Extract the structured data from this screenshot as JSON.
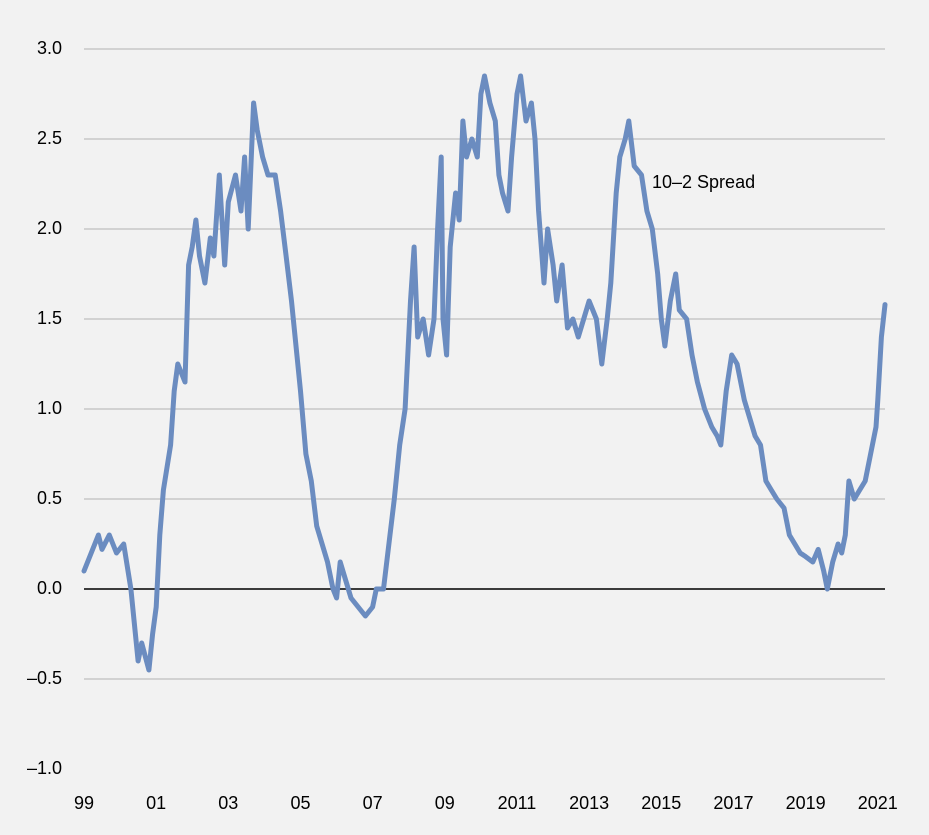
{
  "chart_data": {
    "type": "line",
    "annotation": "10–2 Spread",
    "series": [
      {
        "name": "10–2 Spread",
        "color": "#6b8cc0",
        "x": [
          1999.0,
          1999.2,
          1999.4,
          1999.5,
          1999.7,
          1999.9,
          2000.1,
          2000.3,
          2000.5,
          2000.6,
          2000.8,
          2000.9,
          2001.0,
          2001.1,
          2001.2,
          2001.4,
          2001.5,
          2001.6,
          2001.8,
          2001.9,
          2002.0,
          2002.1,
          2002.2,
          2002.35,
          2002.5,
          2002.6,
          2002.75,
          2002.9,
          2003.0,
          2003.2,
          2003.35,
          2003.45,
          2003.55,
          2003.7,
          2003.8,
          2003.95,
          2004.1,
          2004.3,
          2004.45,
          2004.6,
          2004.75,
          2004.9,
          2005.0,
          2005.15,
          2005.3,
          2005.45,
          2005.6,
          2005.75,
          2005.9,
          2006.0,
          2006.1,
          2006.25,
          2006.4,
          2006.6,
          2006.8,
          2007.0,
          2007.1,
          2007.3,
          2007.45,
          2007.6,
          2007.75,
          2007.9,
          2008.05,
          2008.15,
          2008.25,
          2008.4,
          2008.55,
          2008.7,
          2008.8,
          2008.9,
          2008.95,
          2009.05,
          2009.15,
          2009.3,
          2009.4,
          2009.5,
          2009.6,
          2009.75,
          2009.9,
          2010.0,
          2010.1,
          2010.25,
          2010.4,
          2010.5,
          2010.6,
          2010.75,
          2010.85,
          2011.0,
          2011.1,
          2011.25,
          2011.4,
          2011.5,
          2011.6,
          2011.75,
          2011.85,
          2012.0,
          2012.1,
          2012.25,
          2012.4,
          2012.55,
          2012.7,
          2012.85,
          2013.0,
          2013.2,
          2013.35,
          2013.5,
          2013.6,
          2013.75,
          2013.85,
          2014.0,
          2014.1,
          2014.25,
          2014.45,
          2014.6,
          2014.75,
          2014.9,
          2015.0,
          2015.1,
          2015.25,
          2015.4,
          2015.5,
          2015.7,
          2015.85,
          2016.0,
          2016.2,
          2016.4,
          2016.55,
          2016.65,
          2016.8,
          2016.95,
          2017.1,
          2017.3,
          2017.45,
          2017.6,
          2017.75,
          2017.9,
          2018.05,
          2018.2,
          2018.4,
          2018.55,
          2018.7,
          2018.85,
          2019.0,
          2019.2,
          2019.35,
          2019.5,
          2019.6,
          2019.75,
          2019.9,
          2020.0,
          2020.1,
          2020.2,
          2020.35,
          2020.5,
          2020.65,
          2020.8,
          2020.95,
          2021.0,
          2021.1,
          2021.2
        ],
        "values": [
          0.1,
          0.2,
          0.3,
          0.22,
          0.3,
          0.2,
          0.25,
          0.0,
          -0.4,
          -0.3,
          -0.45,
          -0.25,
          -0.1,
          0.3,
          0.55,
          0.8,
          1.1,
          1.25,
          1.15,
          1.8,
          1.9,
          2.05,
          1.85,
          1.7,
          1.95,
          1.85,
          2.3,
          1.8,
          2.15,
          2.3,
          2.1,
          2.4,
          2.0,
          2.7,
          2.55,
          2.4,
          2.3,
          2.3,
          2.1,
          1.85,
          1.6,
          1.3,
          1.1,
          0.75,
          0.6,
          0.35,
          0.25,
          0.15,
          0.0,
          -0.05,
          0.15,
          0.05,
          -0.05,
          -0.1,
          -0.15,
          -0.1,
          0.0,
          0.0,
          0.25,
          0.5,
          0.8,
          1.0,
          1.6,
          1.9,
          1.4,
          1.5,
          1.3,
          1.5,
          2.0,
          2.4,
          1.5,
          1.3,
          1.9,
          2.2,
          2.05,
          2.6,
          2.4,
          2.5,
          2.4,
          2.75,
          2.85,
          2.7,
          2.6,
          2.3,
          2.2,
          2.1,
          2.4,
          2.75,
          2.85,
          2.6,
          2.7,
          2.5,
          2.1,
          1.7,
          2.0,
          1.8,
          1.6,
          1.8,
          1.45,
          1.5,
          1.4,
          1.5,
          1.6,
          1.5,
          1.25,
          1.5,
          1.7,
          2.2,
          2.4,
          2.5,
          2.6,
          2.35,
          2.3,
          2.1,
          2.0,
          1.75,
          1.5,
          1.35,
          1.6,
          1.75,
          1.55,
          1.5,
          1.3,
          1.15,
          1.0,
          0.9,
          0.85,
          0.8,
          1.1,
          1.3,
          1.25,
          1.05,
          0.95,
          0.85,
          0.8,
          0.6,
          0.55,
          0.5,
          0.45,
          0.3,
          0.25,
          0.2,
          0.18,
          0.15,
          0.22,
          0.1,
          0.0,
          0.15,
          0.25,
          0.2,
          0.3,
          0.6,
          0.5,
          0.55,
          0.6,
          0.75,
          0.9,
          1.05,
          1.4,
          1.58
        ]
      }
    ],
    "xlim": [
      1999,
      2021.2
    ],
    "xticks": [
      {
        "value": 1999,
        "label": "99"
      },
      {
        "value": 2001,
        "label": "01"
      },
      {
        "value": 2003,
        "label": "03"
      },
      {
        "value": 2005,
        "label": "05"
      },
      {
        "value": 2007,
        "label": "07"
      },
      {
        "value": 2009,
        "label": "09"
      },
      2011,
      2013,
      2015,
      2017,
      2019,
      2021
    ],
    "ylim": [
      -1,
      3
    ],
    "yticks": [
      {
        "value": -1,
        "label": "–1.0"
      },
      {
        "value": -0.5,
        "label": "–0.5"
      },
      {
        "value": 0,
        "label": "0.0"
      },
      0.5,
      {
        "value": 1,
        "label": "1.0"
      },
      1.5,
      {
        "value": 2,
        "label": "2.0"
      },
      2.5,
      {
        "value": 3,
        "label": "3.0"
      }
    ],
    "grid": true
  }
}
